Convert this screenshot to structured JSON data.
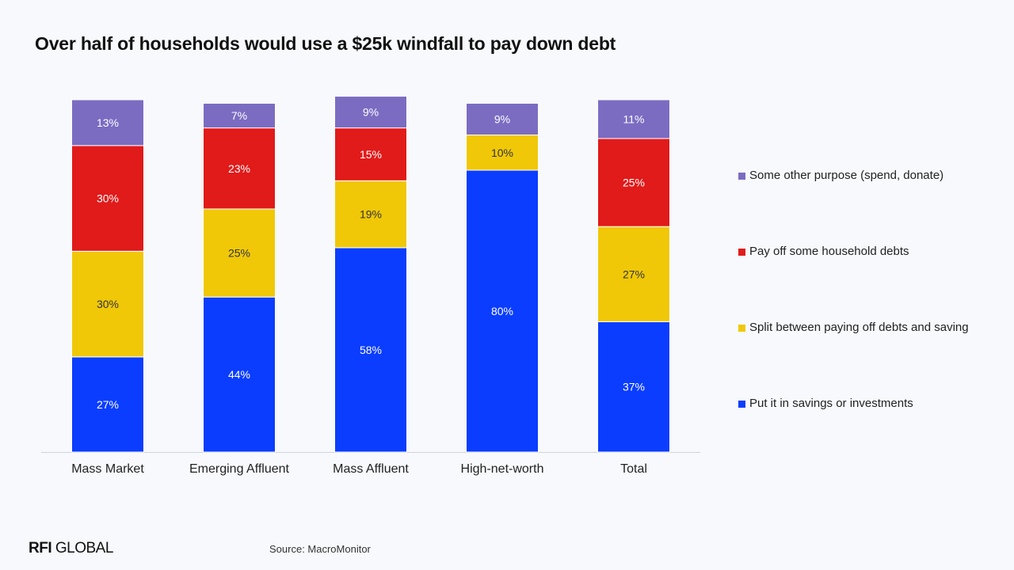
{
  "title": "Over half of households would use a $25k windfall to pay down debt",
  "brand": {
    "bold": "RFI",
    "rest": " GLOBAL"
  },
  "source": "Source: MacroMonitor",
  "chart_data": {
    "type": "bar",
    "stacked": true,
    "categories": [
      "Mass Market",
      "Emerging Affluent",
      "Mass Affluent",
      "High-net-worth",
      "Total"
    ],
    "series": [
      {
        "name": "Put it in savings or investments",
        "color": "#0a3dff",
        "values": [
          27,
          44,
          58,
          80,
          37
        ]
      },
      {
        "name": "Split between paying off debts and saving",
        "color": "#f0c808",
        "values": [
          30,
          25,
          19,
          10,
          27
        ]
      },
      {
        "name": "Pay off some household debts",
        "color": "#e11a1a",
        "values": [
          30,
          23,
          15,
          0,
          25
        ]
      },
      {
        "name": "Some other purpose (spend, donate)",
        "color": "#7b6cc2",
        "values": [
          13,
          7,
          9,
          9,
          11
        ]
      }
    ],
    "data_labels": [
      [
        "27%",
        "44%",
        "58%",
        "80%",
        "37%"
      ],
      [
        "30%",
        "25%",
        "19%",
        "10%",
        "27%"
      ],
      [
        "30%",
        "23%",
        "15%",
        "",
        "25%"
      ],
      [
        "13%",
        "7%",
        "9%",
        "9%",
        "11%"
      ]
    ],
    "ylim": [
      0,
      100
    ],
    "grid": false,
    "legend_position": "right"
  }
}
